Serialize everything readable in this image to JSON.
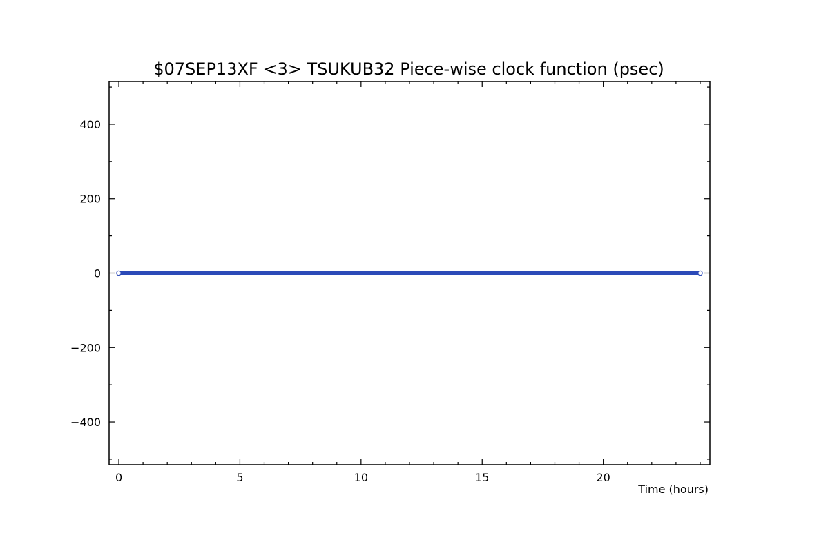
{
  "chart_data": {
    "type": "line",
    "title": "$07SEP13XF <3>  TSUKUB32  Piece-wise clock function (psec)",
    "xlabel": "Time (hours)",
    "ylabel": "",
    "xlim": [
      -0.4,
      24.4
    ],
    "ylim": [
      -515,
      515
    ],
    "xticks": [
      0,
      5,
      10,
      15,
      20
    ],
    "xtick_labels": [
      "0",
      "5",
      "10",
      "15",
      "20"
    ],
    "yticks": [
      400,
      200,
      0,
      -200,
      -400
    ],
    "ytick_labels": [
      "400",
      "200",
      "0",
      "−200",
      "−400"
    ],
    "x_minor_step": 1,
    "y_minor_step": 100,
    "grid": false,
    "legend": "none",
    "series": [
      {
        "x": [
          0,
          24
        ],
        "y": [
          0,
          0
        ],
        "color": "#2b4ab8",
        "marker": "open-circle"
      }
    ]
  }
}
